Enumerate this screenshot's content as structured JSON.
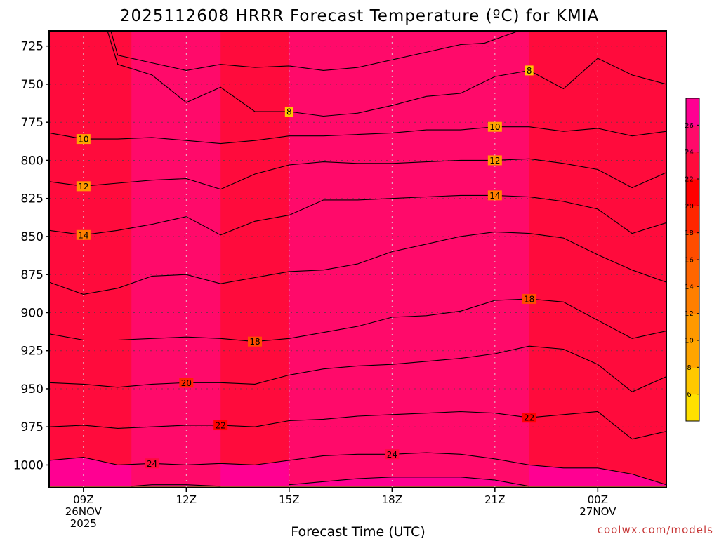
{
  "chart_data": {
    "type": "heatmap",
    "title": "2025112608 HRRR Forecast Temperature (ºC) for KMIA",
    "xlabel": "Forecast Time (UTC)",
    "credit": "coolwx.com/models",
    "x_hours": [
      8,
      26
    ],
    "y_levels": [
      715,
      1015
    ],
    "y_ticks": [
      725,
      750,
      775,
      800,
      825,
      850,
      875,
      900,
      925,
      950,
      975,
      1000
    ],
    "x_ticks": [
      {
        "hour": 9,
        "lines": [
          "09Z",
          "26NOV",
          "2025"
        ]
      },
      {
        "hour": 12,
        "lines": [
          "12Z"
        ]
      },
      {
        "hour": 15,
        "lines": [
          "15Z"
        ]
      },
      {
        "hour": 18,
        "lines": [
          "18Z"
        ]
      },
      {
        "hour": 21,
        "lines": [
          "21Z"
        ]
      },
      {
        "hour": 24,
        "lines": [
          "00Z",
          "27NOV"
        ]
      }
    ],
    "surface_pressure_hpa": 1014,
    "surface_color": "#a0522d",
    "colorbar": {
      "bounds": [
        4,
        6,
        8,
        10,
        12,
        14,
        16,
        18,
        20,
        22,
        24,
        26,
        28
      ],
      "colors": [
        "#ffe100",
        "#ffc800",
        "#ffa500",
        "#ff9900",
        "#ff7f00",
        "#ff6600",
        "#ff4d00",
        "#ff2600",
        "#ff0000",
        "#ff0b3c",
        "#ff0a6a",
        "#ff0092"
      ],
      "tick_labels": [
        "6",
        "8",
        "10",
        "12",
        "14",
        "16",
        "18",
        "20",
        "22",
        "24",
        "26"
      ]
    },
    "isotherms": [
      {
        "value": 6,
        "points": [
          [
            9.8,
            715
          ],
          [
            10.0,
            731
          ],
          [
            11.0,
            736
          ],
          [
            12.0,
            741
          ],
          [
            13.0,
            737
          ],
          [
            14.0,
            739
          ],
          [
            15.0,
            738
          ],
          [
            16.0,
            741
          ],
          [
            17.0,
            739
          ],
          [
            18.0,
            734
          ],
          [
            19.0,
            729
          ],
          [
            20.0,
            724
          ],
          [
            20.7,
            723
          ],
          [
            21.7,
            715
          ]
        ]
      },
      {
        "value": 8,
        "points": [
          [
            9.7,
            715
          ],
          [
            10.0,
            737
          ],
          [
            11.0,
            744
          ],
          [
            12.0,
            762
          ],
          [
            13.0,
            752
          ],
          [
            14.0,
            768
          ],
          [
            15.0,
            768
          ],
          [
            16.0,
            771
          ],
          [
            17.0,
            769
          ],
          [
            18.0,
            764
          ],
          [
            19.0,
            758
          ],
          [
            20.0,
            756
          ],
          [
            21.0,
            745
          ],
          [
            22.0,
            741
          ],
          [
            23.0,
            753
          ],
          [
            24.0,
            733
          ],
          [
            25.0,
            744
          ],
          [
            26.0,
            750
          ]
        ]
      },
      {
        "value": 10,
        "points": [
          [
            8.0,
            782
          ],
          [
            9.0,
            786
          ],
          [
            10.0,
            786
          ],
          [
            11.0,
            785
          ],
          [
            12.0,
            787
          ],
          [
            13.0,
            789
          ],
          [
            14.0,
            787
          ],
          [
            15.0,
            784
          ],
          [
            16.0,
            784
          ],
          [
            17.0,
            783
          ],
          [
            18.0,
            782
          ],
          [
            19.0,
            780
          ],
          [
            20.0,
            780
          ],
          [
            21.0,
            778
          ],
          [
            22.0,
            778
          ],
          [
            23.0,
            781
          ],
          [
            24.0,
            779
          ],
          [
            25.0,
            784
          ],
          [
            26.0,
            781
          ]
        ]
      },
      {
        "value": 12,
        "points": [
          [
            8.0,
            814
          ],
          [
            9.0,
            817
          ],
          [
            10.0,
            815
          ],
          [
            11.0,
            813
          ],
          [
            12.0,
            812
          ],
          [
            13.0,
            819
          ],
          [
            14.0,
            809
          ],
          [
            15.0,
            803
          ],
          [
            16.0,
            801
          ],
          [
            17.0,
            802
          ],
          [
            18.0,
            802
          ],
          [
            19.0,
            801
          ],
          [
            20.0,
            800
          ],
          [
            21.0,
            800
          ],
          [
            22.0,
            799
          ],
          [
            23.0,
            802
          ],
          [
            24.0,
            806
          ],
          [
            25.0,
            818
          ],
          [
            26.0,
            808
          ]
        ]
      },
      {
        "value": 14,
        "points": [
          [
            8.0,
            846
          ],
          [
            9.0,
            849
          ],
          [
            10.0,
            846
          ],
          [
            11.0,
            842
          ],
          [
            12.0,
            837
          ],
          [
            13.0,
            849
          ],
          [
            14.0,
            840
          ],
          [
            15.0,
            836
          ],
          [
            16.0,
            826
          ],
          [
            17.0,
            826
          ],
          [
            18.0,
            825
          ],
          [
            19.0,
            824
          ],
          [
            20.0,
            823
          ],
          [
            21.0,
            823
          ],
          [
            22.0,
            824
          ],
          [
            23.0,
            827
          ],
          [
            24.0,
            832
          ],
          [
            25.0,
            848
          ],
          [
            26.0,
            841
          ]
        ]
      },
      {
        "value": 16,
        "points": [
          [
            8.0,
            880
          ],
          [
            9.0,
            888
          ],
          [
            10.0,
            884
          ],
          [
            11.0,
            876
          ],
          [
            12.0,
            875
          ],
          [
            13.0,
            881
          ],
          [
            14.0,
            877
          ],
          [
            15.0,
            873
          ],
          [
            16.0,
            872
          ],
          [
            17.0,
            868
          ],
          [
            18.0,
            860
          ],
          [
            19.0,
            855
          ],
          [
            20.0,
            850
          ],
          [
            21.0,
            847
          ],
          [
            22.0,
            848
          ],
          [
            23.0,
            851
          ],
          [
            24.0,
            862
          ],
          [
            25.0,
            872
          ],
          [
            26.0,
            880
          ]
        ]
      },
      {
        "value": 18,
        "points": [
          [
            8.0,
            914
          ],
          [
            9.0,
            918
          ],
          [
            10.0,
            918
          ],
          [
            11.0,
            917
          ],
          [
            12.0,
            916
          ],
          [
            13.0,
            917
          ],
          [
            14.0,
            919
          ],
          [
            15.0,
            917
          ],
          [
            16.0,
            913
          ],
          [
            17.0,
            909
          ],
          [
            18.0,
            903
          ],
          [
            19.0,
            902
          ],
          [
            20.0,
            899
          ],
          [
            21.0,
            892
          ],
          [
            22.0,
            891
          ],
          [
            23.0,
            893
          ],
          [
            24.0,
            905
          ],
          [
            25.0,
            917
          ],
          [
            26.0,
            912
          ]
        ]
      },
      {
        "value": 20,
        "points": [
          [
            8.0,
            946
          ],
          [
            9.0,
            947
          ],
          [
            10.0,
            949
          ],
          [
            11.0,
            947
          ],
          [
            12.0,
            946
          ],
          [
            13.0,
            946
          ],
          [
            14.0,
            947
          ],
          [
            15.0,
            941
          ],
          [
            16.0,
            937
          ],
          [
            17.0,
            935
          ],
          [
            18.0,
            934
          ],
          [
            19.0,
            932
          ],
          [
            20.0,
            930
          ],
          [
            21.0,
            927
          ],
          [
            22.0,
            922
          ],
          [
            23.0,
            924
          ],
          [
            24.0,
            934
          ],
          [
            25.0,
            952
          ],
          [
            26.0,
            942
          ]
        ]
      },
      {
        "value": 22,
        "points": [
          [
            8.0,
            975
          ],
          [
            9.0,
            974
          ],
          [
            10.0,
            976
          ],
          [
            11.0,
            975
          ],
          [
            12.0,
            974
          ],
          [
            13.0,
            974
          ],
          [
            14.0,
            975
          ],
          [
            15.0,
            971
          ],
          [
            16.0,
            970
          ],
          [
            17.0,
            968
          ],
          [
            18.0,
            967
          ],
          [
            19.0,
            966
          ],
          [
            20.0,
            965
          ],
          [
            21.0,
            966
          ],
          [
            22.0,
            969
          ],
          [
            23.0,
            967
          ],
          [
            24.0,
            965
          ],
          [
            25.0,
            983
          ],
          [
            26.0,
            978
          ]
        ]
      },
      {
        "value": 24,
        "points": [
          [
            8.0,
            997
          ],
          [
            9.0,
            995
          ],
          [
            10.0,
            1000
          ],
          [
            11.0,
            999
          ],
          [
            12.0,
            1000
          ],
          [
            13.0,
            999
          ],
          [
            14.0,
            1000
          ],
          [
            15.0,
            997
          ],
          [
            16.0,
            994
          ],
          [
            17.0,
            993
          ],
          [
            18.0,
            993
          ],
          [
            19.0,
            992
          ],
          [
            20.0,
            993
          ],
          [
            21.0,
            996
          ],
          [
            22.0,
            1000
          ],
          [
            23.0,
            1002
          ],
          [
            24.0,
            1002
          ],
          [
            25.0,
            1006
          ],
          [
            26.0,
            1013
          ]
        ]
      },
      {
        "value": 26,
        "points": [
          [
            10.4,
            1014
          ],
          [
            11.0,
            1013
          ],
          [
            12.0,
            1013
          ],
          [
            13.0,
            1014
          ]
        ]
      },
      {
        "value": 26,
        "points": [
          [
            15.0,
            1013
          ],
          [
            16.0,
            1011
          ],
          [
            17.0,
            1009
          ],
          [
            18.0,
            1008
          ],
          [
            19.0,
            1008
          ],
          [
            20.0,
            1008
          ],
          [
            21.0,
            1010
          ],
          [
            22.0,
            1014
          ]
        ]
      }
    ],
    "contour_labels": [
      {
        "text": "8",
        "hour": 15.0,
        "p": 768
      },
      {
        "text": "8",
        "hour": 22.0,
        "p": 741
      },
      {
        "text": "10",
        "hour": 9.0,
        "p": 786
      },
      {
        "text": "10",
        "hour": 21.0,
        "p": 778
      },
      {
        "text": "12",
        "hour": 9.0,
        "p": 817
      },
      {
        "text": "12",
        "hour": 21.0,
        "p": 800
      },
      {
        "text": "14",
        "hour": 9.0,
        "p": 849
      },
      {
        "text": "14",
        "hour": 21.0,
        "p": 823
      },
      {
        "text": "18",
        "hour": 14.0,
        "p": 919
      },
      {
        "text": "18",
        "hour": 22.0,
        "p": 891
      },
      {
        "text": "20",
        "hour": 12.0,
        "p": 946
      },
      {
        "text": "22",
        "hour": 13.0,
        "p": 974
      },
      {
        "text": "22",
        "hour": 22.0,
        "p": 969
      },
      {
        "text": "24",
        "hour": 11.0,
        "p": 999
      },
      {
        "text": "24",
        "hour": 18.0,
        "p": 993
      }
    ]
  }
}
